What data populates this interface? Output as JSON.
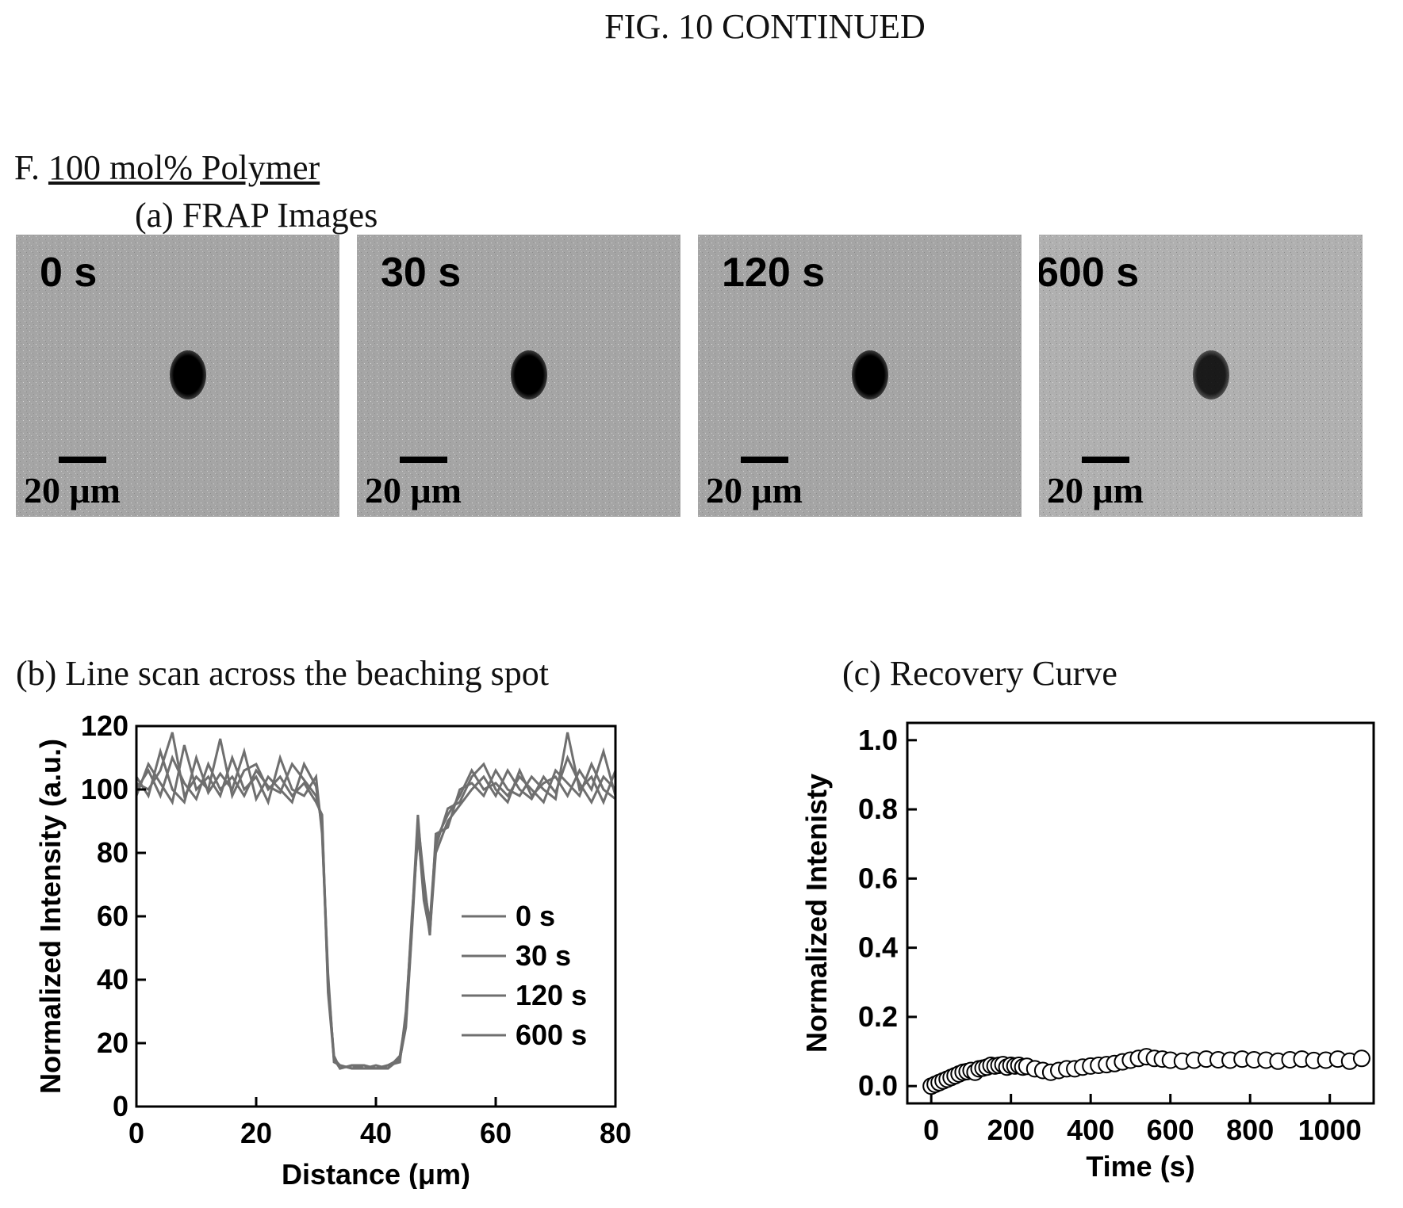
{
  "figure_title": "FIG. 10 CONTINUED",
  "section": {
    "prefix": "F.",
    "name": "100 mol% Polymer"
  },
  "frap": {
    "title": "(a) FRAP Images",
    "panels": [
      {
        "time": "0 s",
        "scale": "20 μm"
      },
      {
        "time": "30 s",
        "scale": "20 μm"
      },
      {
        "time": "120 s",
        "scale": "20 μm"
      },
      {
        "time": "600 s",
        "scale": "20 μm"
      }
    ]
  },
  "colors": {
    "line": "#6f6f6f",
    "axis": "#000000",
    "panel": "#a5a5a5",
    "marker_edge": "#000000",
    "marker_fill": "#ffffff"
  },
  "chart_data": [
    {
      "type": "line",
      "title": "(b) Line scan across the beaching spot",
      "xlabel": "Distance (μm)",
      "ylabel": "Normalized Intensity (a.u.)",
      "xlim": [
        0,
        80
      ],
      "ylim": [
        0,
        120
      ],
      "xticks": [
        0,
        20,
        40,
        60,
        80
      ],
      "yticks": [
        0,
        20,
        40,
        60,
        80,
        100,
        120
      ],
      "legend_position": "center-right",
      "series": [
        {
          "name": "0 s",
          "x": [
            0,
            2,
            4,
            6,
            8,
            10,
            12,
            14,
            16,
            18,
            20,
            22,
            24,
            26,
            28,
            30,
            31,
            32,
            33,
            34,
            36,
            38,
            40,
            42,
            44,
            45,
            46,
            47,
            48,
            49,
            50,
            52,
            54,
            56,
            58,
            60,
            62,
            64,
            66,
            68,
            70,
            72,
            74,
            76,
            78,
            80
          ],
          "y": [
            100,
            106,
            98,
            110,
            102,
            97,
            108,
            100,
            104,
            98,
            106,
            101,
            99,
            108,
            103,
            98,
            90,
            40,
            15,
            13,
            12,
            13,
            12,
            13,
            15,
            25,
            55,
            88,
            65,
            55,
            80,
            90,
            95,
            100,
            104,
            98,
            106,
            100,
            97,
            104,
            99,
            110,
            102,
            96,
            104,
            100
          ]
        },
        {
          "name": "30 s",
          "x": [
            0,
            2,
            4,
            6,
            8,
            10,
            12,
            14,
            16,
            18,
            20,
            22,
            24,
            26,
            28,
            30,
            31,
            32,
            33,
            34,
            36,
            38,
            40,
            42,
            44,
            45,
            46,
            47,
            48,
            49,
            50,
            52,
            54,
            56,
            58,
            60,
            62,
            64,
            66,
            68,
            70,
            72,
            74,
            76,
            78,
            80
          ],
          "y": [
            104,
            98,
            112,
            100,
            96,
            110,
            99,
            105,
            100,
            112,
            97,
            104,
            100,
            96,
            108,
            101,
            88,
            38,
            16,
            12,
            13,
            12,
            13,
            12,
            16,
            28,
            60,
            85,
            70,
            58,
            84,
            92,
            98,
            106,
            100,
            102,
            98,
            104,
            100,
            96,
            106,
            102,
            98,
            108,
            100,
            97
          ]
        },
        {
          "name": "120 s",
          "x": [
            0,
            2,
            4,
            6,
            8,
            10,
            12,
            14,
            16,
            18,
            20,
            22,
            24,
            26,
            28,
            30,
            31,
            32,
            33,
            34,
            36,
            38,
            40,
            42,
            44,
            45,
            46,
            47,
            48,
            49,
            50,
            52,
            54,
            56,
            58,
            60,
            62,
            64,
            66,
            68,
            70,
            72,
            74,
            76,
            78,
            80
          ],
          "y": [
            98,
            108,
            102,
            96,
            114,
            100,
            104,
            98,
            110,
            100,
            104,
            96,
            110,
            100,
            98,
            104,
            86,
            42,
            14,
            13,
            12,
            12,
            12,
            13,
            14,
            30,
            58,
            92,
            68,
            54,
            86,
            88,
            100,
            102,
            98,
            106,
            100,
            98,
            104,
            100,
            97,
            118,
            100,
            104,
            96,
            106
          ]
        },
        {
          "name": "600 s",
          "x": [
            0,
            2,
            4,
            6,
            8,
            10,
            12,
            14,
            16,
            18,
            20,
            22,
            24,
            26,
            28,
            30,
            31,
            32,
            33,
            34,
            36,
            38,
            40,
            42,
            44,
            45,
            46,
            47,
            48,
            49,
            50,
            52,
            54,
            56,
            58,
            60,
            62,
            64,
            66,
            68,
            70,
            72,
            74,
            76,
            78,
            80
          ],
          "y": [
            102,
            100,
            106,
            118,
            98,
            104,
            100,
            116,
            98,
            106,
            108,
            100,
            104,
            98,
            102,
            96,
            92,
            36,
            15,
            12,
            13,
            13,
            12,
            12,
            15,
            26,
            56,
            90,
            72,
            56,
            82,
            94,
            96,
            104,
            108,
            100,
            96,
            106,
            98,
            102,
            104,
            98,
            106,
            100,
            112,
            98
          ]
        }
      ]
    },
    {
      "type": "scatter",
      "title": "(c) Recovery Curve",
      "xlabel": "Time (s)",
      "ylabel": "Normalized Intenisty",
      "xlim": [
        -60,
        1110
      ],
      "ylim": [
        -0.05,
        1.05
      ],
      "xticks": [
        0,
        200,
        400,
        600,
        800,
        1000
      ],
      "yticks": [
        0.0,
        0.2,
        0.4,
        0.6,
        0.8,
        1.0
      ],
      "x": [
        0,
        10,
        20,
        30,
        40,
        50,
        60,
        70,
        80,
        90,
        100,
        110,
        120,
        130,
        140,
        150,
        160,
        170,
        180,
        190,
        200,
        210,
        220,
        230,
        240,
        260,
        280,
        300,
        320,
        340,
        360,
        380,
        400,
        420,
        440,
        460,
        480,
        500,
        520,
        540,
        560,
        580,
        600,
        630,
        660,
        690,
        720,
        750,
        780,
        810,
        840,
        870,
        900,
        930,
        960,
        990,
        1020,
        1050,
        1080
      ],
      "y": [
        0.0,
        0.005,
        0.01,
        0.015,
        0.02,
        0.025,
        0.03,
        0.035,
        0.04,
        0.042,
        0.045,
        0.04,
        0.05,
        0.052,
        0.055,
        0.06,
        0.058,
        0.06,
        0.062,
        0.055,
        0.06,
        0.058,
        0.06,
        0.055,
        0.057,
        0.05,
        0.045,
        0.04,
        0.045,
        0.05,
        0.05,
        0.055,
        0.058,
        0.06,
        0.062,
        0.065,
        0.07,
        0.075,
        0.08,
        0.085,
        0.08,
        0.078,
        0.075,
        0.072,
        0.075,
        0.078,
        0.076,
        0.075,
        0.078,
        0.076,
        0.075,
        0.072,
        0.076,
        0.078,
        0.074,
        0.075,
        0.078,
        0.072,
        0.08
      ]
    }
  ]
}
